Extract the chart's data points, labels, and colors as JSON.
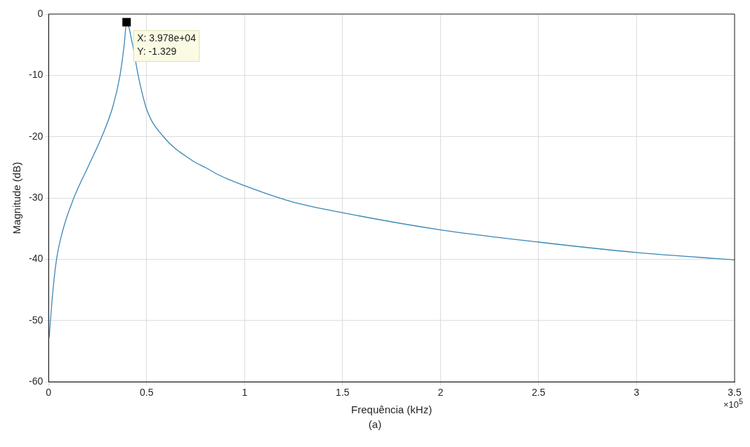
{
  "chart_data": {
    "type": "line",
    "xlabel": "Frequência (kHz)",
    "ylabel": "Magnitude (dB)",
    "x": [
      0.00286,
      0.0214,
      0.04,
      0.0714,
      0.1286,
      0.2,
      0.2714,
      0.3286,
      0.3643,
      0.3857,
      0.3978,
      0.4286,
      0.457,
      0.5,
      0.5857,
      0.7286,
      0.8038,
      0.8714,
      1,
      1.24,
      1.5,
      2,
      2.5,
      3,
      3.5
    ],
    "series": [
      {
        "color": "#3a87b5",
        "values": [
          -52.8,
          -45.3,
          -40.1,
          -35.4,
          -30,
          -25,
          -20,
          -15,
          -10,
          -5,
          -1.329,
          -5,
          -10,
          -15.5,
          -20,
          -23.8,
          -25.1,
          -26.3,
          -28,
          -30.6,
          -32.4,
          -35.2,
          -37.2,
          -38.9,
          -40.1
        ]
      }
    ],
    "xlim": [
      0,
      3.5
    ],
    "xticks": [
      0,
      0.5,
      1,
      1.5,
      2,
      2.5,
      3,
      3.5
    ],
    "ylim": [
      -60,
      0
    ],
    "yticks": [
      -60,
      -50,
      -40,
      -30,
      -20,
      -10,
      0
    ],
    "grid": true,
    "legend": false,
    "marker": "none",
    "line_style": "solid",
    "annotations": [
      {
        "text": "X: 3.978e+04\nY: -1.329",
        "x": 0.3978,
        "y": -1.329
      },
      "×10$^{5}$",
      "(a)"
    ]
  }
}
